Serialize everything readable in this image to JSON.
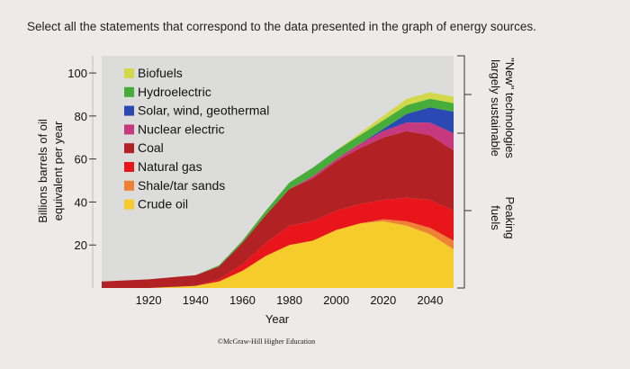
{
  "question": "Select all the statements that correspond to the data presented in the graph of energy sources.",
  "chart_data": {
    "type": "area",
    "stacked": true,
    "xlabel": "Year",
    "ylabel_lines": [
      "Billions barrels of oil",
      "equivalent per year"
    ],
    "xlim": [
      1900,
      2050
    ],
    "ylim": [
      0,
      108
    ],
    "x_ticks": [
      1920,
      1940,
      1960,
      1980,
      2000,
      2020,
      2040
    ],
    "y_ticks": [
      20,
      40,
      60,
      80,
      100
    ],
    "grid": false,
    "legend_position": "top-left",
    "x": [
      1900,
      1920,
      1940,
      1950,
      1960,
      1970,
      1980,
      1990,
      2000,
      2010,
      2020,
      2030,
      2040,
      2050
    ],
    "series": [
      {
        "name": "Crude oil",
        "color": "#f5cc2b",
        "values": [
          0,
          0,
          1,
          3,
          8,
          15,
          20,
          22,
          27,
          30,
          31,
          29,
          25,
          18
        ]
      },
      {
        "name": "Shale/tar sands",
        "color": "#ee8135",
        "values": [
          0,
          0,
          0,
          0,
          0,
          0,
          0,
          0,
          0,
          0,
          1,
          2,
          3,
          4
        ]
      },
      {
        "name": "Natural gas",
        "color": "#e8161b",
        "values": [
          0,
          0,
          0,
          1,
          3,
          6,
          9,
          9,
          9,
          9,
          9,
          11,
          13,
          14
        ]
      },
      {
        "name": "Coal",
        "color": "#b22225",
        "values": [
          3,
          4,
          5,
          6,
          10,
          13,
          17,
          20,
          23,
          26,
          29,
          31,
          30,
          28
        ]
      },
      {
        "name": "Nuclear electric",
        "color": "#c6397e",
        "values": [
          0,
          0,
          0,
          0,
          0,
          0,
          0,
          1,
          1,
          2,
          3,
          4,
          6,
          8
        ]
      },
      {
        "name": "Solar, wind, geothermal",
        "color": "#2a49b3",
        "values": [
          0,
          0,
          0,
          0,
          0,
          0,
          0,
          0,
          0,
          0,
          1,
          4,
          7,
          10
        ]
      },
      {
        "name": "Hydroelectric",
        "color": "#47ad3a",
        "values": [
          0,
          0,
          0,
          0.5,
          1,
          2,
          3,
          4,
          4,
          4,
          4,
          4,
          4,
          4
        ]
      },
      {
        "name": "Biofuels",
        "color": "#d2d84a",
        "values": [
          0,
          0,
          0,
          0,
          0,
          0,
          0,
          0,
          0,
          1,
          2,
          3,
          3,
          3
        ]
      }
    ],
    "legend_order": [
      "Biofuels",
      "Hydroelectric",
      "Solar, wind, geothermal",
      "Nuclear electric",
      "Coal",
      "Natural gas",
      "Shale/tar sands",
      "Crude oil"
    ],
    "bracket_labels": [
      {
        "lines": [
          "\"New\" technologies",
          "largely sustainable"
        ],
        "series_span": [
          "Biofuels",
          "Solar, wind, geothermal"
        ]
      },
      {
        "lines": [
          "Peaking",
          "fuels"
        ],
        "series_span": [
          "Nuclear electric",
          "Crude oil"
        ]
      }
    ],
    "credit": "©McGraw-Hill Higher Education"
  }
}
